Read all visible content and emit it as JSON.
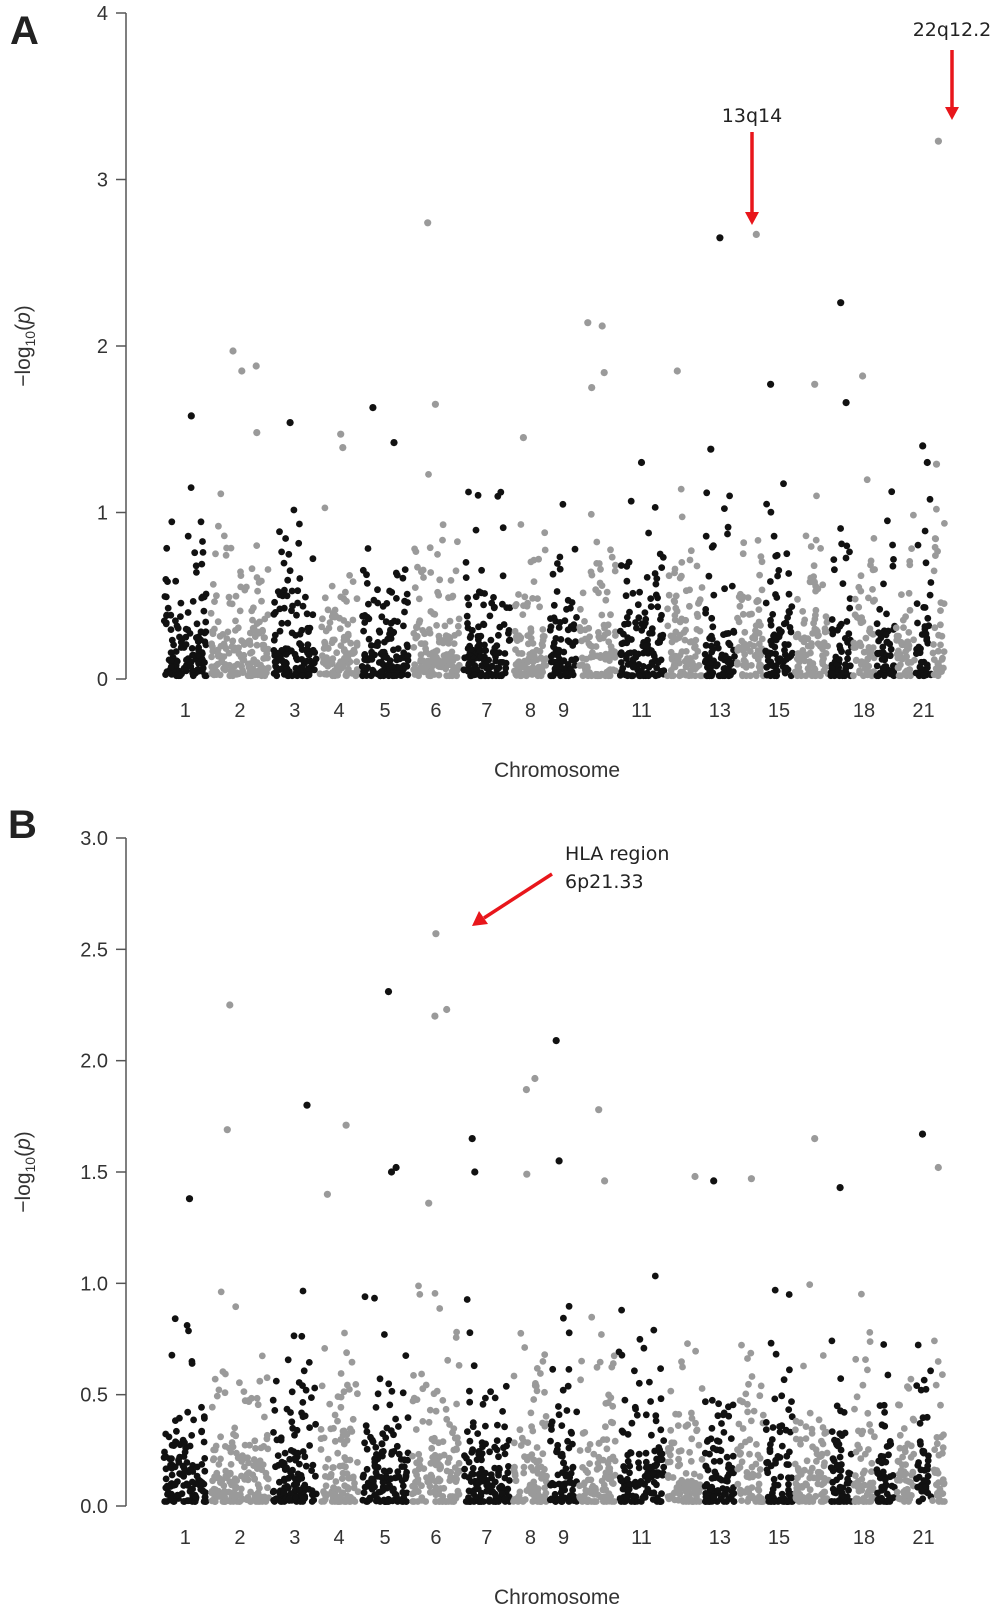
{
  "figure": {
    "panels": [
      {
        "letter": "A"
      },
      {
        "letter": "B"
      }
    ]
  },
  "chart_data": [
    {
      "type": "scatter",
      "subtype": "manhattan",
      "panel": "A",
      "title": "",
      "xlabel": "Chromosome",
      "ylabel": "-log10(p)",
      "ylim": [
        0,
        4
      ],
      "y_ticks": [
        "0",
        "1",
        "2",
        "3",
        "4"
      ],
      "x_tick_labels": [
        "1",
        "2",
        "3",
        "4",
        "5",
        "6",
        "7",
        "8",
        "9",
        "11",
        "13",
        "15",
        "18",
        "21"
      ],
      "alternating_colors": [
        "#111111",
        "#9a9a9a"
      ],
      "chromosomes": [
        {
          "chr": 1,
          "start": 0.026,
          "end": 0.096
        },
        {
          "chr": 2,
          "start": 0.096,
          "end": 0.191
        },
        {
          "chr": 3,
          "start": 0.191,
          "end": 0.262
        },
        {
          "chr": 4,
          "start": 0.262,
          "end": 0.325
        },
        {
          "chr": 5,
          "start": 0.325,
          "end": 0.401
        },
        {
          "chr": 6,
          "start": 0.401,
          "end": 0.479
        },
        {
          "chr": 7,
          "start": 0.479,
          "end": 0.555
        },
        {
          "chr": 8,
          "start": 0.555,
          "end": 0.611
        },
        {
          "chr": 9,
          "start": 0.611,
          "end": 0.655
        },
        {
          "chr": 10,
          "start": 0.655,
          "end": 0.714
        },
        {
          "chr": 11,
          "start": 0.714,
          "end": 0.788
        },
        {
          "chr": 12,
          "start": 0.788,
          "end": 0.845
        },
        {
          "chr": 13,
          "start": 0.845,
          "end": 0.894
        },
        {
          "chr": 14,
          "start": 0.894,
          "end": 0.937
        },
        {
          "chr": 15,
          "start": 0.937,
          "end": 0.981
        },
        {
          "chr": 16,
          "start": 0.981,
          "end": 1.036
        },
        {
          "chr": 17,
          "start": 1.036,
          "end": 1.07
        },
        {
          "chr": 18,
          "start": 1.07,
          "end": 1.105
        },
        {
          "chr": 19,
          "start": 1.105,
          "end": 1.135
        },
        {
          "chr": 20,
          "start": 1.135,
          "end": 1.165
        },
        {
          "chr": 21,
          "start": 1.165,
          "end": 1.19
        },
        {
          "chr": 22,
          "start": 1.19,
          "end": 1.21
        }
      ],
      "highlight_points": [
        {
          "chr": 22,
          "y": 3.23,
          "label": "22q12.2"
        },
        {
          "chr": 13,
          "y": 2.65,
          "label": "13q14"
        },
        {
          "chr": 6,
          "y": 2.74
        },
        {
          "chr": 14,
          "y": 2.67
        },
        {
          "chr": 17,
          "y": 2.26
        },
        {
          "chr": 10,
          "y": 2.14
        },
        {
          "chr": 10,
          "y": 2.12
        },
        {
          "chr": 2,
          "y": 1.97
        },
        {
          "chr": 2,
          "y": 1.88
        },
        {
          "chr": 2,
          "y": 1.85
        },
        {
          "chr": 12,
          "y": 1.85
        },
        {
          "chr": 10,
          "y": 1.84
        },
        {
          "chr": 18,
          "y": 1.82
        },
        {
          "chr": 15,
          "y": 1.77
        },
        {
          "chr": 16,
          "y": 1.77
        },
        {
          "chr": 10,
          "y": 1.75
        },
        {
          "chr": 17,
          "y": 1.66
        },
        {
          "chr": 6,
          "y": 1.65
        },
        {
          "chr": 5,
          "y": 1.63
        },
        {
          "chr": 1,
          "y": 1.58
        },
        {
          "chr": 3,
          "y": 1.54
        },
        {
          "chr": 2,
          "y": 1.48
        },
        {
          "chr": 4,
          "y": 1.47
        },
        {
          "chr": 8,
          "y": 1.45
        },
        {
          "chr": 5,
          "y": 1.42
        },
        {
          "chr": 21,
          "y": 1.4
        },
        {
          "chr": 13,
          "y": 1.38
        },
        {
          "chr": 4,
          "y": 1.39
        },
        {
          "chr": 22,
          "y": 1.29
        },
        {
          "chr": 21,
          "y": 1.3
        },
        {
          "chr": 11,
          "y": 1.3
        }
      ],
      "annotations": [
        {
          "label": "13q14"
        },
        {
          "label": "22q12.2"
        }
      ]
    },
    {
      "type": "scatter",
      "subtype": "manhattan",
      "panel": "B",
      "title": "",
      "xlabel": "Chromosome",
      "ylabel": "-log10(p)",
      "ylim": [
        0,
        3.0
      ],
      "y_ticks": [
        "0.0",
        "0.5",
        "1.0",
        "1.5",
        "2.0",
        "2.5",
        "3.0"
      ],
      "x_tick_labels": [
        "1",
        "2",
        "3",
        "4",
        "5",
        "6",
        "7",
        "8",
        "9",
        "11",
        "13",
        "15",
        "18",
        "21"
      ],
      "alternating_colors": [
        "#111111",
        "#9a9a9a"
      ],
      "highlight_points": [
        {
          "chr": 6,
          "y": 2.57,
          "label": "HLA region 6p21.33"
        },
        {
          "chr": 5,
          "y": 2.31
        },
        {
          "chr": 2,
          "y": 2.25
        },
        {
          "chr": 6,
          "y": 2.23
        },
        {
          "chr": 6,
          "y": 2.2
        },
        {
          "chr": 9,
          "y": 2.09
        },
        {
          "chr": 8,
          "y": 1.92
        },
        {
          "chr": 8,
          "y": 1.87
        },
        {
          "chr": 3,
          "y": 1.8
        },
        {
          "chr": 10,
          "y": 1.78
        },
        {
          "chr": 2,
          "y": 1.69
        },
        {
          "chr": 4,
          "y": 1.71
        },
        {
          "chr": 21,
          "y": 1.67
        },
        {
          "chr": 7,
          "y": 1.65
        },
        {
          "chr": 16,
          "y": 1.65
        },
        {
          "chr": 9,
          "y": 1.55
        },
        {
          "chr": 5,
          "y": 1.52
        },
        {
          "chr": 22,
          "y": 1.52
        },
        {
          "chr": 7,
          "y": 1.5
        },
        {
          "chr": 5,
          "y": 1.5
        },
        {
          "chr": 8,
          "y": 1.49
        },
        {
          "chr": 12,
          "y": 1.48
        },
        {
          "chr": 14,
          "y": 1.47
        },
        {
          "chr": 13,
          "y": 1.46
        },
        {
          "chr": 10,
          "y": 1.46
        },
        {
          "chr": 17,
          "y": 1.43
        },
        {
          "chr": 4,
          "y": 1.4
        },
        {
          "chr": 1,
          "y": 1.38
        },
        {
          "chr": 6,
          "y": 1.36
        }
      ],
      "annotations": [
        {
          "label_line1": "HLA region",
          "label_line2": "6p21.33"
        }
      ]
    }
  ]
}
